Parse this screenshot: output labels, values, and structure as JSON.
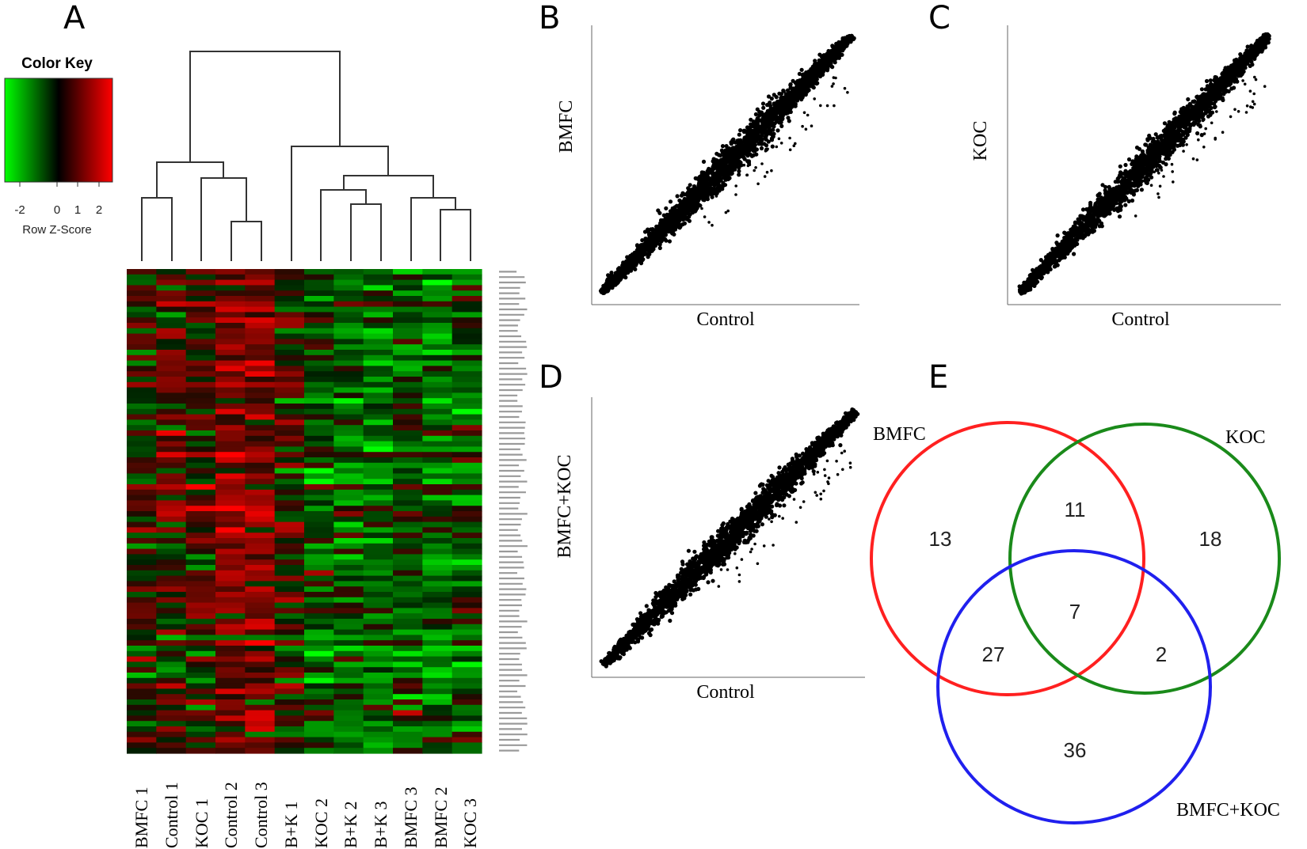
{
  "panels": {
    "A": "A",
    "B": "B",
    "C": "C",
    "D": "D",
    "E": "E"
  },
  "heatmap": {
    "color_key": {
      "title": "Color Key",
      "ticks": [
        "-2",
        "0",
        "1",
        "2"
      ],
      "label": "Row Z-Score",
      "colors": {
        "low": "#00ff00",
        "mid": "#000000",
        "high": "#ff0000"
      }
    },
    "columns": [
      "BMFC 1",
      "Control 1",
      "KOC 1",
      "Control 2",
      "Control 3",
      "B+K 1",
      "KOC 2",
      "B+K 2",
      "B+K 3",
      "BMFC 3",
      "BMFC 2",
      "KOC 3"
    ],
    "column_bias": [
      0.0,
      0.25,
      0.1,
      0.9,
      1.0,
      0.1,
      -0.6,
      -0.7,
      -0.8,
      -0.4,
      -0.8,
      -0.5
    ],
    "row_count": 90
  },
  "scatter_plots": [
    {
      "panel": "B",
      "xlabel": "Control",
      "ylabel": "BMFC"
    },
    {
      "panel": "C",
      "xlabel": "Control",
      "ylabel": "KOC"
    },
    {
      "panel": "D",
      "xlabel": "Control",
      "ylabel": "BMFC+KOC"
    }
  ],
  "venn": {
    "sets": [
      {
        "name": "BMFC",
        "color": "#ff2020"
      },
      {
        "name": "KOC",
        "color": "#1a8a1a"
      },
      {
        "name": "BMFC+KOC",
        "color": "#2020ee"
      }
    ],
    "regions": {
      "bmfc_only": "13",
      "bmfc_koc": "11",
      "koc_only": "18",
      "all_three": "7",
      "bmfc_bk": "27",
      "koc_bk": "2",
      "bk_only": "36"
    }
  }
}
